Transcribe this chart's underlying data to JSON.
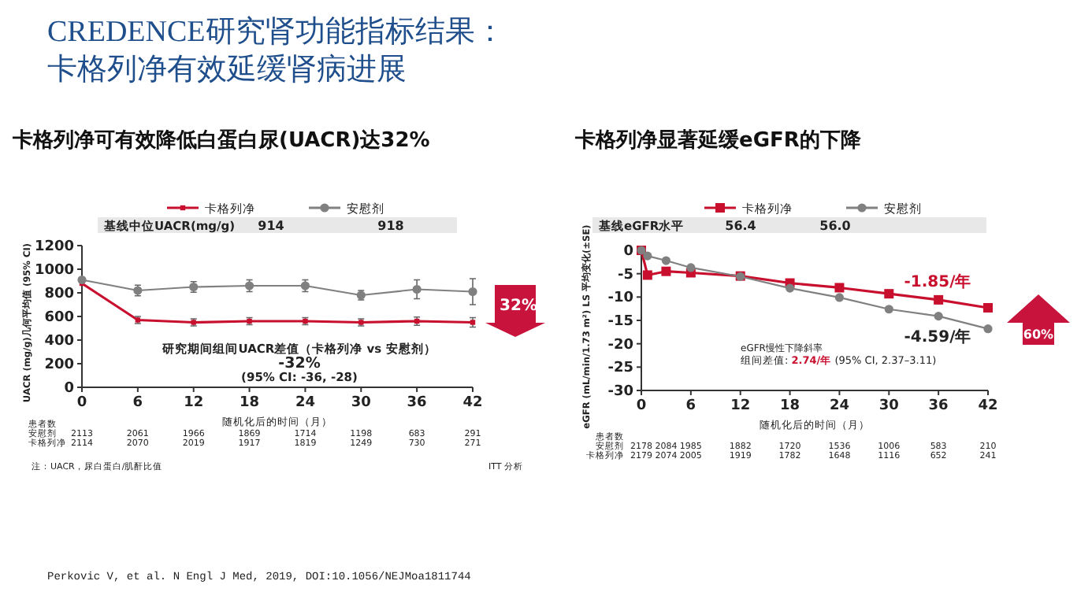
{
  "chart_data": [
    {
      "type": "line",
      "title": "CREDENCE研究肾功能指标结果：卡格列净有效延缓肾病进展",
      "subtitle": "卡格列净可有效降低白蛋白尿(UACR)达32%",
      "xlabel": "随机化后的时间（月）",
      "ylabel": "UACR (mg/g)几何平均值 (95% CI)",
      "x": [
        0,
        6,
        12,
        18,
        24,
        30,
        36,
        42
      ],
      "xlim": [
        0,
        42
      ],
      "xticks": [
        0,
        6,
        12,
        18,
        24,
        30,
        36,
        42
      ],
      "ylim": [
        0,
        1200
      ],
      "yticks": [
        0,
        200,
        400,
        600,
        800,
        1000,
        1200
      ],
      "legend": "top",
      "series": [
        {
          "name": "卡格列净",
          "color": "#c8102e",
          "marker": "square",
          "values": [
            880,
            570,
            550,
            560,
            560,
            550,
            560,
            550
          ],
          "errors": [
            null,
            30,
            30,
            30,
            30,
            30,
            35,
            40
          ]
        },
        {
          "name": "安慰剂",
          "color": "#808080",
          "marker": "circle",
          "values": [
            910,
            820,
            850,
            860,
            860,
            780,
            830,
            810
          ],
          "errors": [
            null,
            45,
            45,
            50,
            50,
            40,
            80,
            110
          ]
        }
      ],
      "annotations": [
        "基线中位UACR(mg/g)",
        "914",
        "918",
        "患者数",
        "安慰剂",
        "2113",
        "2061",
        "1966",
        "1869",
        "1714",
        "1198",
        "683",
        "291",
        "卡格列净",
        "2114",
        "2070",
        "2019",
        "1917",
        "1819",
        "1249",
        "730",
        "271",
        "研究期间组间UACR差值（卡格列净 vs 安慰剂）",
        "-32%",
        "(95% CI: -36, -28)",
        "32%",
        "注：UACR，尿白蛋白/肌酐比值",
        "ITT 分析"
      ]
    },
    {
      "type": "line",
      "title": "卡格列净显著延缓eGFR的下降",
      "xlabel": "随机化后的时间（月）",
      "ylabel": "eGFR (mL/min/1.73 m²) LS 平均变化(±SE)",
      "xlim": [
        0,
        42
      ],
      "xticks": [
        0,
        6,
        12,
        18,
        24,
        30,
        36,
        42
      ],
      "ylim": [
        -30,
        0
      ],
      "yticks": [
        -30,
        -25,
        -20,
        -15,
        -10,
        -5,
        0
      ],
      "legend": "top",
      "series": [
        {
          "name": "卡格列净",
          "color": "#c8102e",
          "marker": "square",
          "x": [
            0,
            0.75,
            3,
            6,
            12,
            18,
            24,
            30,
            36,
            42
          ],
          "values": [
            0,
            -5.3,
            -4.5,
            -4.8,
            -5.5,
            -7,
            -8,
            -9.3,
            -10.6,
            -12.3
          ]
        },
        {
          "name": "安慰剂",
          "color": "#808080",
          "marker": "circle",
          "x": [
            0,
            0.75,
            3,
            6,
            12,
            18,
            24,
            30,
            36,
            42
          ],
          "values": [
            0,
            -1.2,
            -2.2,
            -3.7,
            -5.6,
            -8.1,
            -10.1,
            -12.6,
            -14.1,
            -16.8
          ]
        }
      ],
      "annotations": [
        "基线eGFR水平",
        "56.4",
        "56.0",
        "患者数",
        "安慰剂",
        "2178",
        "2084",
        "1985",
        "1882",
        "1720",
        "1536",
        "1006",
        "583",
        "210",
        "卡格列净",
        "2179",
        "2074",
        "2005",
        "1919",
        "1782",
        "1648",
        "1116",
        "652",
        "241",
        "-1.85/年",
        "-4.59/年",
        "eGFR慢性下降斜率",
        "组间差值: **2.74/年** (95% CI, 2.37–3.11)",
        "60%",
        "Perkovic V, et al. N Engl J Med, 2019, DOI:10.1056/NEJMoa1811744"
      ]
    }
  ]
}
